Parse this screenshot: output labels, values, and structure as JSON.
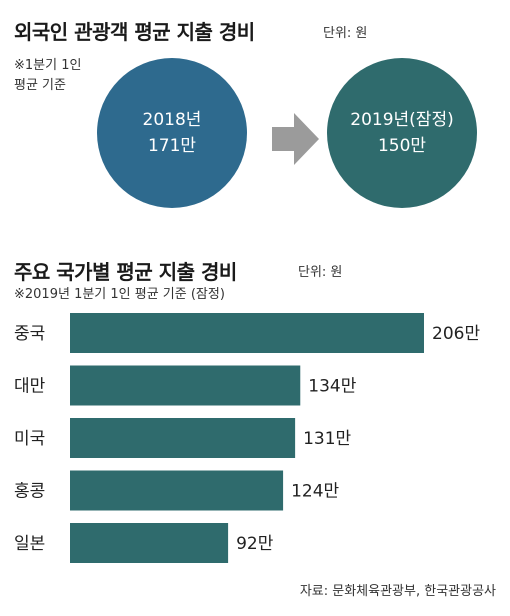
{
  "top": {
    "title": "외국인 관광객 평균 지출 경비",
    "unit": "단위: 원",
    "note_line1": "※1분기 1인",
    "note_line2": "평균 기준",
    "circle_2018": {
      "line1": "2018년",
      "line2": "171만"
    },
    "circle_2019": {
      "line1": "2019년(잠정)",
      "line2": "150만"
    },
    "colors": {
      "circle_2018": "#2e6a8e",
      "circle_2019": "#2f6b6d",
      "arrow": "#9b9b9b"
    }
  },
  "bottom": {
    "title": "주요 국가별 평균 지출 경비",
    "unit": "단위: 원",
    "note": "※2019년 1분기 1인 평균 기준 (잠정)"
  },
  "chart_data": {
    "type": "bar",
    "orientation": "horizontal",
    "categories": [
      "중국",
      "대만",
      "미국",
      "홍콩",
      "일본"
    ],
    "values": [
      206,
      134,
      131,
      124,
      92
    ],
    "value_labels": [
      "206만",
      "134만",
      "131만",
      "124만",
      "92만"
    ],
    "bar_color": "#2f6b6d",
    "grid": false
  },
  "source": "자료: 문화체육관광부, 한국관광공사"
}
